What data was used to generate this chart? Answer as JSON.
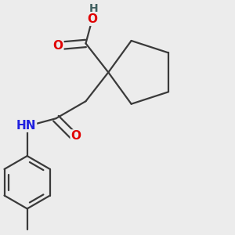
{
  "background_color": "#ececec",
  "bond_color": "#3a3a3a",
  "bond_width": 1.6,
  "atom_colors": {
    "O": "#e00000",
    "N": "#2020e0",
    "H": "#406060"
  },
  "font_size": 11,
  "fig_w": 3.0,
  "fig_h": 3.0,
  "dpi": 100,
  "xlim": [
    0.0,
    1.0
  ],
  "ylim": [
    0.0,
    1.0
  ]
}
